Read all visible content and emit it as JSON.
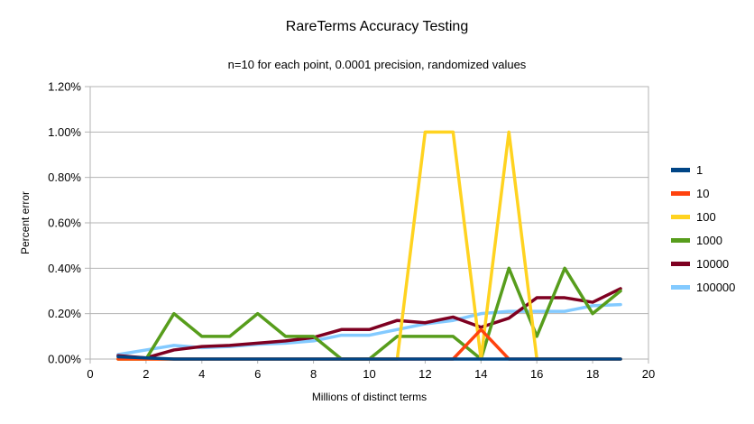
{
  "chart_data": {
    "type": "line",
    "title": "RareTerms Accuracy Testing",
    "subtitle": "n=10 for each point, 0.0001 precision, randomized values",
    "xlabel": "Millions of distinct terms",
    "ylabel": "Percent error",
    "xlim": [
      0,
      20
    ],
    "ylim": [
      0,
      1.2
    ],
    "y_unit": "percent",
    "grid": true,
    "legend_position": "right",
    "axis_color": "#b3b3b3",
    "text_color": "#000000",
    "background_color": "#ffffff",
    "x_ticks": [
      0,
      2,
      4,
      6,
      8,
      10,
      12,
      14,
      16,
      18,
      20
    ],
    "x_tick_labels": [
      "0",
      "2",
      "4",
      "6",
      "8",
      "10",
      "12",
      "14",
      "16",
      "18",
      "20"
    ],
    "y_tick_values": [
      0,
      0.2,
      0.4,
      0.6,
      0.8,
      1.0,
      1.2
    ],
    "y_tick_labels": [
      "0.00%",
      "0.20%",
      "0.40%",
      "0.60%",
      "0.80%",
      "1.00%",
      "1.20%"
    ],
    "x": [
      1,
      2,
      3,
      4,
      5,
      6,
      7,
      8,
      9,
      10,
      11,
      12,
      13,
      14,
      15,
      16,
      17,
      18,
      19
    ],
    "series": [
      {
        "name": "1",
        "color": "#004586",
        "values": [
          0.01,
          0.005,
          0,
          0,
          0,
          0,
          0,
          0,
          0,
          0,
          0,
          0,
          0,
          0,
          0,
          0,
          0,
          0,
          0
        ]
      },
      {
        "name": "10",
        "color": "#FF420E",
        "values": [
          0,
          0,
          0,
          0,
          0,
          0,
          0,
          0,
          0,
          0,
          0,
          0,
          0,
          0.13,
          0,
          0,
          0,
          0,
          0
        ]
      },
      {
        "name": "100",
        "color": "#FFD320",
        "values": [
          0,
          0,
          0,
          0,
          0,
          0,
          0,
          0,
          0,
          0,
          0,
          1.0,
          1.0,
          0,
          1.0,
          0,
          0,
          0,
          0
        ]
      },
      {
        "name": "1000",
        "color": "#579D1C",
        "values": [
          0,
          0,
          0.2,
          0.1,
          0.1,
          0.2,
          0.1,
          0.1,
          0,
          0,
          0.1,
          0.1,
          0.1,
          0,
          0.4,
          0.1,
          0.4,
          0.2,
          0.3
        ]
      },
      {
        "name": "10000",
        "color": "#7E0021",
        "values": [
          0.015,
          0.005,
          0.04,
          0.055,
          0.06,
          0.07,
          0.08,
          0.095,
          0.13,
          0.13,
          0.17,
          0.16,
          0.185,
          0.14,
          0.18,
          0.27,
          0.27,
          0.25,
          0.31
        ]
      },
      {
        "name": "100000",
        "color": "#83CAFF",
        "values": [
          0.02,
          0.04,
          0.06,
          0.05,
          0.055,
          0.065,
          0.07,
          0.08,
          0.105,
          0.105,
          0.13,
          0.155,
          0.17,
          0.2,
          0.21,
          0.21,
          0.21,
          0.235,
          0.24
        ]
      }
    ]
  }
}
